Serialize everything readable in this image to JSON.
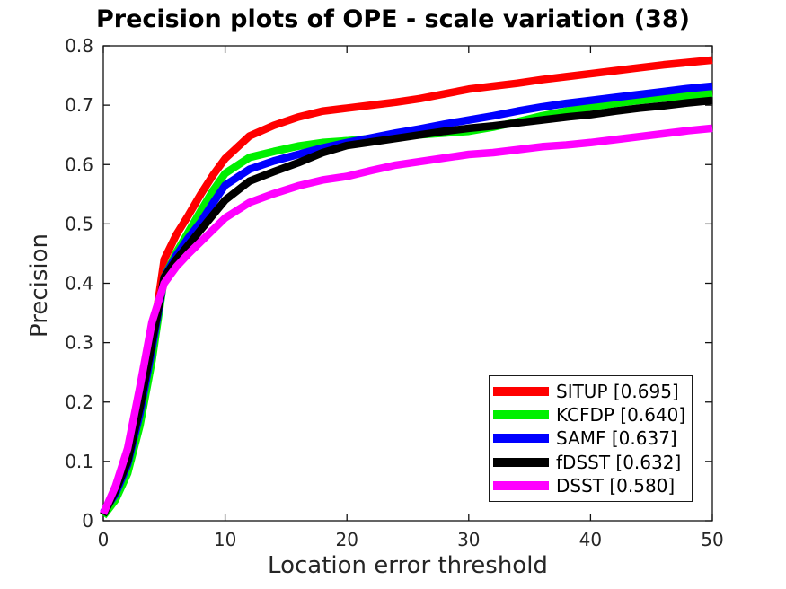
{
  "chart_data": {
    "type": "line",
    "title": "Precision plots of OPE - scale variation (38)",
    "xlabel": "Location error threshold",
    "ylabel": "Precision",
    "xlim": [
      0,
      50
    ],
    "ylim": [
      0,
      0.8
    ],
    "xticks": [
      0,
      10,
      20,
      30,
      40,
      50
    ],
    "yticks": [
      0,
      0.1,
      0.2,
      0.3,
      0.4,
      0.5,
      0.6,
      0.7,
      0.8
    ],
    "grid": false,
    "legend_position": "lower-right-inside",
    "x": [
      0,
      1,
      2,
      3,
      4,
      5,
      6,
      7,
      8,
      9,
      10,
      12,
      14,
      16,
      18,
      20,
      22,
      24,
      26,
      28,
      30,
      32,
      34,
      36,
      38,
      40,
      42,
      44,
      46,
      48,
      50
    ],
    "series": [
      {
        "name": "SITUP",
        "legend_label": "SITUP [0.695]",
        "score": 0.695,
        "color": "#ff0000",
        "values": [
          0.01,
          0.048,
          0.1,
          0.19,
          0.3,
          0.44,
          0.482,
          0.515,
          0.55,
          0.582,
          0.61,
          0.648,
          0.666,
          0.68,
          0.69,
          0.695,
          0.7,
          0.705,
          0.711,
          0.719,
          0.727,
          0.732,
          0.737,
          0.743,
          0.748,
          0.753,
          0.758,
          0.763,
          0.768,
          0.772,
          0.776
        ]
      },
      {
        "name": "KCFDP",
        "legend_label": "KCFDP [0.640]",
        "score": 0.64,
        "color": "#00f000",
        "values": [
          0.008,
          0.035,
          0.08,
          0.16,
          0.27,
          0.41,
          0.452,
          0.487,
          0.522,
          0.556,
          0.585,
          0.612,
          0.622,
          0.631,
          0.637,
          0.64,
          0.644,
          0.647,
          0.65,
          0.653,
          0.656,
          0.663,
          0.672,
          0.682,
          0.69,
          0.697,
          0.703,
          0.708,
          0.712,
          0.716,
          0.72
        ]
      },
      {
        "name": "SAMF",
        "legend_label": "SAMF [0.637]",
        "score": 0.637,
        "color": "#0000ff",
        "values": [
          0.014,
          0.045,
          0.095,
          0.18,
          0.29,
          0.41,
          0.447,
          0.477,
          0.503,
          0.535,
          0.565,
          0.592,
          0.606,
          0.617,
          0.628,
          0.637,
          0.645,
          0.653,
          0.66,
          0.668,
          0.675,
          0.682,
          0.69,
          0.697,
          0.703,
          0.708,
          0.713,
          0.718,
          0.723,
          0.728,
          0.732
        ]
      },
      {
        "name": "fDSST",
        "legend_label": "fDSST [0.632]",
        "score": 0.632,
        "color": "#000000",
        "values": [
          0.01,
          0.05,
          0.1,
          0.19,
          0.3,
          0.41,
          0.44,
          0.465,
          0.49,
          0.515,
          0.54,
          0.572,
          0.588,
          0.603,
          0.62,
          0.632,
          0.638,
          0.644,
          0.65,
          0.656,
          0.661,
          0.665,
          0.67,
          0.675,
          0.68,
          0.684,
          0.69,
          0.695,
          0.699,
          0.704,
          0.708
        ]
      },
      {
        "name": "DSST",
        "legend_label": "DSST [0.580]",
        "score": 0.58,
        "color": "#ff00ff",
        "values": [
          0.012,
          0.058,
          0.122,
          0.225,
          0.335,
          0.4,
          0.428,
          0.45,
          0.47,
          0.49,
          0.51,
          0.536,
          0.551,
          0.564,
          0.574,
          0.58,
          0.59,
          0.599,
          0.605,
          0.611,
          0.617,
          0.62,
          0.625,
          0.63,
          0.633,
          0.637,
          0.642,
          0.647,
          0.652,
          0.657,
          0.661
        ]
      }
    ]
  }
}
